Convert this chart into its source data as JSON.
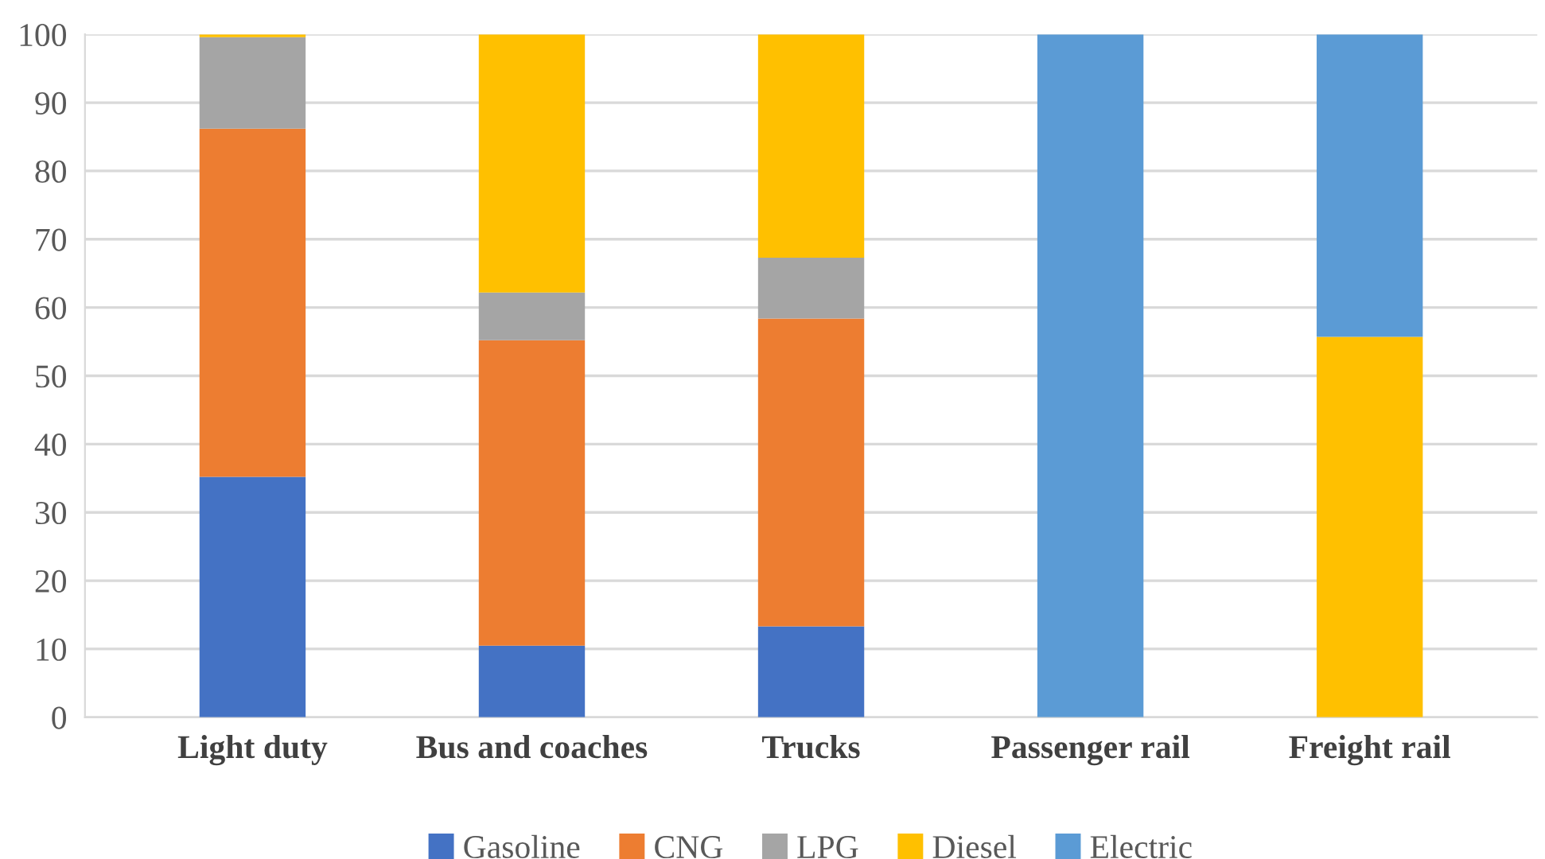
{
  "chart_data": {
    "type": "bar",
    "stacked": true,
    "categories": [
      "Light duty",
      "Bus and coaches",
      "Trucks",
      "Passenger rail",
      "Freight rail"
    ],
    "series": [
      {
        "name": "Gasoline",
        "color": "#4472c4",
        "values": [
          35.2,
          10.5,
          13.3,
          0,
          0
        ]
      },
      {
        "name": "CNG",
        "color": "#ed7d31",
        "values": [
          51.0,
          44.7,
          45.1,
          0,
          0
        ]
      },
      {
        "name": "LPG",
        "color": "#a5a5a5",
        "values": [
          13.4,
          7.0,
          8.9,
          0,
          0
        ]
      },
      {
        "name": "Diesel",
        "color": "#ffc000",
        "values": [
          0.4,
          37.8,
          32.7,
          0,
          55.7
        ]
      },
      {
        "name": "Electric",
        "color": "#5b9bd5",
        "values": [
          0,
          0,
          0,
          100,
          44.3
        ]
      }
    ],
    "ylim": [
      0,
      100
    ],
    "yticks": [
      0,
      10,
      20,
      30,
      40,
      50,
      60,
      70,
      80,
      90,
      100
    ],
    "grid": "y",
    "legend": "bottom"
  }
}
